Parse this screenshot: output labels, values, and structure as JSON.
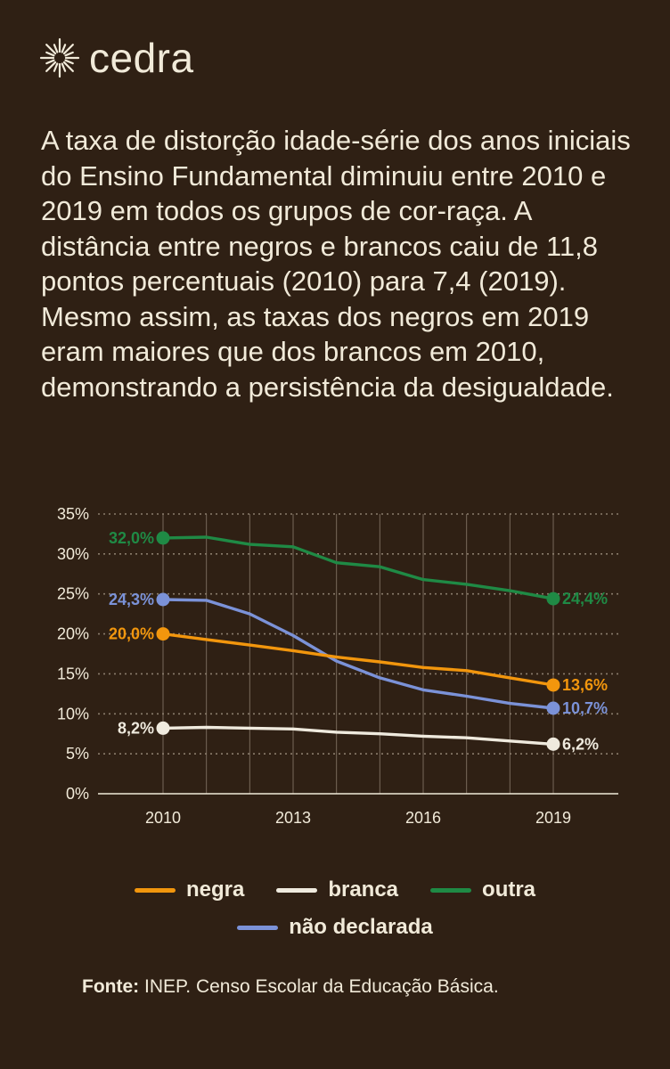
{
  "brand": {
    "name": "cedra",
    "logo_icon": "sun-icon"
  },
  "intro_text": "A taxa de distorção idade-série dos anos iniciais do Ensino Fundamental diminuiu entre 2010 e 2019 em todos os grupos de cor-raça. A distância entre negros e brancos caiu de 11,8 pontos percentuais (2010) para 7,4 (2019). Mesmo assim, as taxas dos negros em 2019 eram maiores que dos brancos em 2010, demonstrando a persistência da desigualdade.",
  "chart_data": {
    "type": "line",
    "x": [
      2010,
      2011,
      2012,
      2013,
      2014,
      2015,
      2016,
      2017,
      2018,
      2019
    ],
    "x_tick_labels": [
      "2010",
      "2013",
      "2016",
      "2019"
    ],
    "x_ticks": [
      2010,
      2013,
      2016,
      2019
    ],
    "y_ticks": [
      0,
      5,
      10,
      15,
      20,
      25,
      30,
      35
    ],
    "y_tick_labels": [
      "0%",
      "5%",
      "10%",
      "15%",
      "20%",
      "25%",
      "30%",
      "35%"
    ],
    "ylim": [
      0,
      35
    ],
    "xlim": [
      2008.5,
      2020.5
    ],
    "grid": true,
    "legend_position": "bottom",
    "series": [
      {
        "name": "outra",
        "color": "#1f8a45",
        "values": [
          32.0,
          32.1,
          31.2,
          30.9,
          28.9,
          28.4,
          26.8,
          26.2,
          25.4,
          24.4
        ],
        "start_label": "32,0%",
        "end_label": "24,4%"
      },
      {
        "name": "não declarada",
        "color": "#7b92d8",
        "values": [
          24.3,
          24.2,
          22.5,
          19.8,
          16.6,
          14.5,
          13.0,
          12.2,
          11.3,
          10.7
        ],
        "start_label": "24,3%",
        "end_label": "10,7%"
      },
      {
        "name": "negra",
        "color": "#f2960d",
        "values": [
          20.0,
          19.3,
          18.6,
          17.9,
          17.1,
          16.5,
          15.8,
          15.4,
          14.5,
          13.6
        ],
        "start_label": "20,0%",
        "end_label": "13,6%"
      },
      {
        "name": "branca",
        "color": "#efeade",
        "values": [
          8.2,
          8.3,
          8.2,
          8.1,
          7.7,
          7.5,
          7.2,
          7.0,
          6.6,
          6.2
        ],
        "start_label": "8,2%",
        "end_label": "6,2%"
      }
    ]
  },
  "legend": {
    "row1": [
      {
        "label": "negra",
        "color": "#f2960d"
      },
      {
        "label": "branca",
        "color": "#efeade"
      },
      {
        "label": "outra",
        "color": "#1f8a45"
      }
    ],
    "row2": [
      {
        "label": "não declarada",
        "color": "#7b92d8"
      }
    ]
  },
  "source": {
    "label": "Fonte:",
    "text": " INEP. Censo Escolar da Educação Básica."
  },
  "colors": {
    "background": "#2f2014",
    "text": "#f1ead9",
    "grid": "#8a7c6c"
  }
}
